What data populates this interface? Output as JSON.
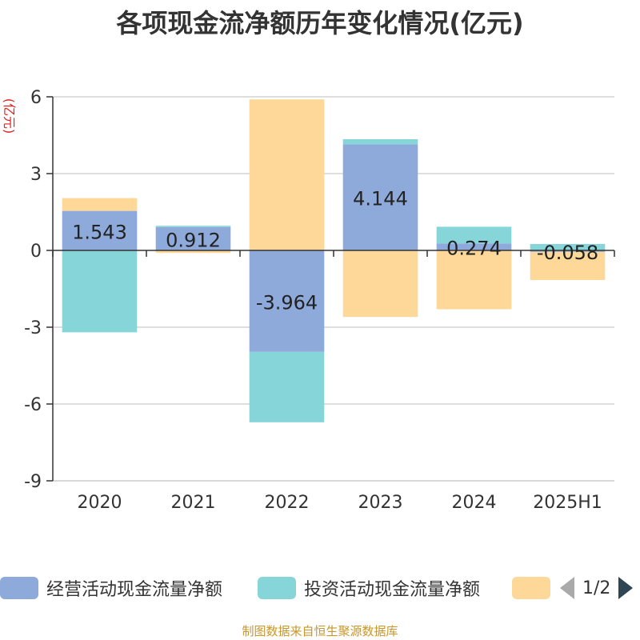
{
  "chart_data": {
    "type": "bar",
    "stacked": true,
    "title": "各项现金流净额历年变化情况(亿元)",
    "ylabel": "(亿元)",
    "categories": [
      "2020",
      "2021",
      "2022",
      "2023",
      "2024",
      "2025H1"
    ],
    "ylim": [
      -9,
      6
    ],
    "yticks": [
      6,
      3,
      0,
      -3,
      -6,
      -9
    ],
    "grid": true,
    "series": [
      {
        "name": "经营活动现金流量净额",
        "color": "#8eaadb",
        "values": [
          1.543,
          0.912,
          -3.964,
          4.144,
          0.274,
          -0.058
        ],
        "labels": [
          "1.543",
          "0.912",
          "-3.964",
          "4.144",
          "0.274",
          "-0.058"
        ]
      },
      {
        "name": "投资活动现金流量净额",
        "color": "#86d5d8",
        "values": [
          -3.2,
          0.05,
          -2.75,
          0.2,
          0.65,
          0.25
        ]
      },
      {
        "name": "",
        "color": "#fdd898",
        "values": [
          0.5,
          -0.1,
          5.9,
          -2.6,
          -2.3,
          -1.1
        ]
      }
    ]
  },
  "legend": {
    "page": "1/2"
  },
  "footer": {
    "source": "制图数据来自恒生聚源数据库"
  }
}
